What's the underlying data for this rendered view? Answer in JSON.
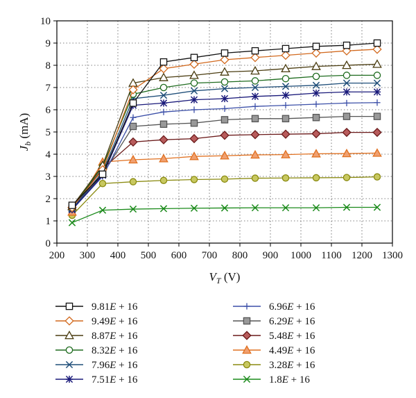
{
  "chart_data": {
    "type": "line",
    "xlabel": "V_T (V)",
    "ylabel": "J_b (mA)",
    "xlim": [
      200,
      1300
    ],
    "ylim": [
      0,
      10
    ],
    "xticks": [
      200,
      300,
      400,
      500,
      600,
      700,
      800,
      900,
      1000,
      1100,
      1200,
      1300
    ],
    "yticks": [
      0,
      1,
      2,
      3,
      4,
      5,
      6,
      7,
      8,
      9,
      10
    ],
    "grid": "dotted major gridlines",
    "legend_position": "bottom, two columns",
    "x": [
      250,
      350,
      450,
      550,
      650,
      750,
      850,
      950,
      1050,
      1150,
      1250
    ],
    "series": [
      {
        "name": "9.81E + 16",
        "marker": "square-open",
        "color": "#111111",
        "values": [
          1.7,
          3.1,
          6.3,
          8.15,
          8.35,
          8.55,
          8.65,
          8.75,
          8.85,
          8.9,
          9.0
        ]
      },
      {
        "name": "9.49E + 16",
        "marker": "diamond-open",
        "color": "#d2691e",
        "values": [
          1.6,
          3.3,
          6.9,
          7.85,
          8.05,
          8.25,
          8.35,
          8.45,
          8.55,
          8.65,
          8.72
        ]
      },
      {
        "name": "8.87E + 16",
        "marker": "triangle-open",
        "color": "#4a3c10",
        "values": [
          1.65,
          3.5,
          7.2,
          7.45,
          7.55,
          7.7,
          7.75,
          7.85,
          7.95,
          8.0,
          8.05
        ]
      },
      {
        "name": "8.32E + 16",
        "marker": "circle-open",
        "color": "#1e6b1e",
        "values": [
          1.6,
          3.45,
          6.7,
          7.0,
          7.2,
          7.25,
          7.3,
          7.4,
          7.5,
          7.55,
          7.55
        ]
      },
      {
        "name": "7.96E + 16",
        "marker": "x",
        "color": "#1f4e79",
        "values": [
          1.55,
          3.2,
          6.5,
          6.65,
          6.85,
          6.95,
          7.0,
          7.05,
          7.1,
          7.2,
          7.2
        ]
      },
      {
        "name": "7.51E + 16",
        "marker": "asterisk",
        "color": "#1a1a7a",
        "values": [
          1.5,
          3.05,
          6.2,
          6.3,
          6.45,
          6.5,
          6.6,
          6.65,
          6.75,
          6.8,
          6.8
        ]
      },
      {
        "name": "6.96E + 16",
        "marker": "plus",
        "color": "#3b4fa8",
        "values": [
          1.5,
          3.0,
          5.65,
          5.9,
          6.0,
          6.05,
          6.15,
          6.2,
          6.25,
          6.3,
          6.32
        ]
      },
      {
        "name": "6.29E + 16",
        "marker": "square-filled",
        "color": "#555555",
        "fill": "#999999",
        "values": [
          1.55,
          3.1,
          5.25,
          5.35,
          5.4,
          5.55,
          5.6,
          5.6,
          5.65,
          5.7,
          5.7
        ]
      },
      {
        "name": "5.48E + 16",
        "marker": "diamond-filled",
        "color": "#6b1a1a",
        "fill": "#b85c5c",
        "values": [
          1.6,
          3.35,
          4.55,
          4.65,
          4.7,
          4.85,
          4.88,
          4.9,
          4.92,
          4.98,
          4.98
        ]
      },
      {
        "name": "4.49E + 16",
        "marker": "triangle-filled",
        "color": "#e07020",
        "fill": "#f0a070",
        "values": [
          1.4,
          3.65,
          3.75,
          3.8,
          3.9,
          3.93,
          3.97,
          3.98,
          4.02,
          4.03,
          4.05
        ]
      },
      {
        "name": "3.28E + 16",
        "marker": "circle-filled",
        "color": "#8a8a10",
        "fill": "#c8c860",
        "values": [
          1.25,
          2.68,
          2.76,
          2.82,
          2.86,
          2.88,
          2.92,
          2.93,
          2.94,
          2.95,
          2.98
        ]
      },
      {
        "name": "1.8E + 16",
        "marker": "x",
        "color": "#1a8a1a",
        "values": [
          0.92,
          1.48,
          1.53,
          1.55,
          1.57,
          1.58,
          1.59,
          1.59,
          1.59,
          1.61,
          1.61
        ]
      }
    ]
  }
}
